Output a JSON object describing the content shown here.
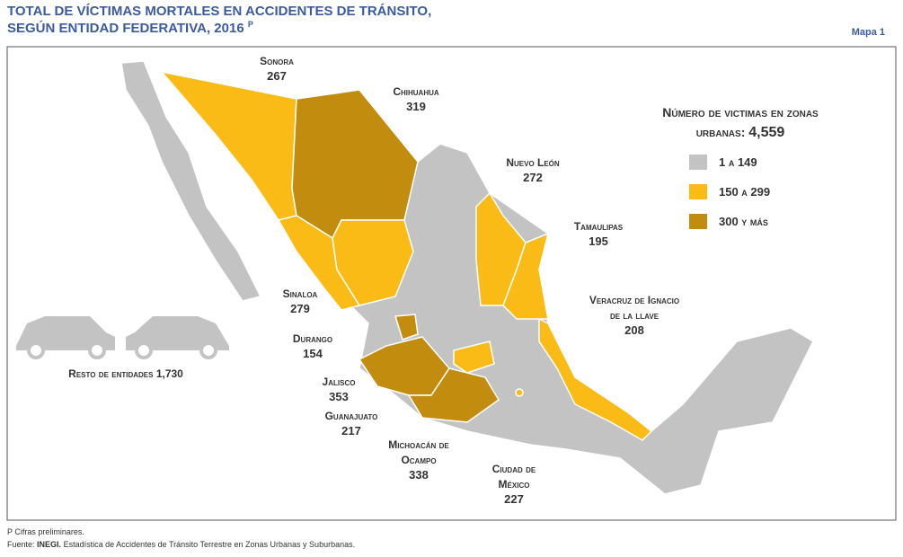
{
  "header": {
    "title_line1": "TOTAL DE VÍCTIMAS MORTALES EN ACCIDENTES DE TRÁNSITO,",
    "title_line2": "SEGÚN ENTIDAD FEDERATIVA, 2016",
    "title_mark": "P",
    "map_number": "Mapa 1"
  },
  "legend": {
    "title_line1": "Número de victimas en zonas",
    "title_line2": "urbanas:",
    "total": "4,559",
    "items": [
      {
        "label": "1 a 149",
        "color": "#c3c3c3"
      },
      {
        "label": "150 a 299",
        "color": "#fbbb16"
      },
      {
        "label": "300 y más",
        "color": "#c28d0f"
      }
    ]
  },
  "states": [
    {
      "name": "Sonora",
      "value": 267
    },
    {
      "name": "Chihuahua",
      "value": 319
    },
    {
      "name": "Nuevo León",
      "value": 272
    },
    {
      "name": "Tamaulipas",
      "value": 195
    },
    {
      "name_line1": "Veracruz de Ignacio",
      "name_line2": "de la llave",
      "value": 208
    },
    {
      "name": "Sinaloa",
      "value": 279
    },
    {
      "name": "Durango",
      "value": 154
    },
    {
      "name": "Jalisco",
      "value": 353
    },
    {
      "name": "Guanajuato",
      "value": 217
    },
    {
      "name_line1": "Michoacán de",
      "name_line2": "Ocampo",
      "value": 338
    },
    {
      "name_line1": "Ciudad de",
      "name_line2": "México",
      "value": 227
    }
  ],
  "rest": {
    "label": "Resto de entidades",
    "value": "1,730"
  },
  "footer": {
    "note_mark": "P",
    "note": "Cifras preliminares.",
    "source_label": "Fuente:",
    "source_org": "INEGI.",
    "source_text": "Estadística de Accidentes de Tránsito Terrestre en Zonas Urbanas y Suburbanas."
  }
}
